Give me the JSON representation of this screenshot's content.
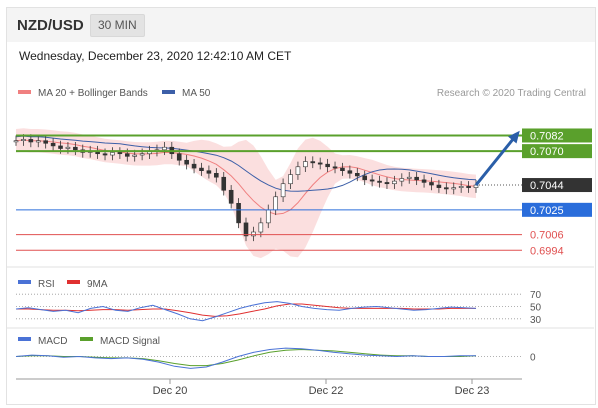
{
  "header": {
    "pair": "NZD/USD",
    "timeframe": "30 MIN"
  },
  "timestamp": "Wednesday, December 23, 2020 12:42:10 AM CET",
  "colors": {
    "bollinger": "#f08080",
    "ma50": "#3c5fa8",
    "support": "#e05050",
    "resistance": "#5aa02c",
    "pivot": "#2a6ddb",
    "price_candle": "#333333"
  },
  "chart_data": [
    {
      "type": "candlestick",
      "legend": [
        {
          "name": "MA 20 + Bollinger Bands",
          "color": "#f08080"
        },
        {
          "name": "MA 50",
          "color": "#3c5fa8"
        }
      ],
      "credit": "Research © 2020 Trading Central",
      "x_ticks": [
        "Dec 20",
        "Dec 22",
        "Dec 23"
      ],
      "ylim": [
        0.6985,
        0.71
      ],
      "close": [
        0.7078,
        0.7079,
        0.7077,
        0.7078,
        0.7076,
        0.7074,
        0.7072,
        0.7073,
        0.7071,
        0.7069,
        0.707,
        0.7068,
        0.7067,
        0.7069,
        0.7068,
        0.7066,
        0.7067,
        0.7068,
        0.707,
        0.7071,
        0.7073,
        0.7068,
        0.7063,
        0.706,
        0.7057,
        0.7055,
        0.7053,
        0.705,
        0.704,
        0.703,
        0.7015,
        0.7005,
        0.7008,
        0.7015,
        0.7025,
        0.7035,
        0.7045,
        0.7052,
        0.7058,
        0.7062,
        0.7061,
        0.706,
        0.7058,
        0.7057,
        0.7055,
        0.7053,
        0.7051,
        0.7048,
        0.7047,
        0.7046,
        0.7045,
        0.7047,
        0.7049,
        0.705,
        0.7048,
        0.7046,
        0.7044,
        0.7042,
        0.7041,
        0.7042,
        0.7043,
        0.7042,
        0.7044
      ],
      "levels": [
        {
          "value": "0.7082",
          "role": "resistance"
        },
        {
          "value": "0.7070",
          "role": "resistance"
        },
        {
          "value": "0.7044",
          "role": "last"
        },
        {
          "value": "0.7025",
          "role": "pivot"
        },
        {
          "value": "0.7006",
          "role": "support"
        },
        {
          "value": "0.6994",
          "role": "support"
        }
      ],
      "forecast": "up"
    },
    {
      "type": "line",
      "legend": [
        {
          "name": "RSI",
          "color": "#4a72d6"
        },
        {
          "name": "9MA",
          "color": "#e03030"
        }
      ],
      "ticks": [
        "70",
        "50",
        "30"
      ],
      "ylim": [
        20,
        80
      ],
      "rsi": [
        46,
        48,
        45,
        42,
        44,
        40,
        47,
        50,
        44,
        42,
        48,
        52,
        45,
        38,
        30,
        27,
        33,
        40,
        47,
        52,
        56,
        58,
        55,
        50,
        47,
        45,
        44,
        47,
        49,
        50,
        48,
        46,
        44,
        45,
        47,
        49,
        48,
        47
      ],
      "ma9": [
        46,
        46,
        45,
        44,
        44,
        43,
        44,
        45,
        45,
        44,
        45,
        46,
        46,
        43,
        40,
        36,
        34,
        35,
        38,
        42,
        46,
        51,
        54,
        54,
        52,
        50,
        48,
        47,
        47,
        47,
        47,
        47,
        46,
        46,
        46,
        47,
        47,
        47
      ]
    },
    {
      "type": "line",
      "legend": [
        {
          "name": "MACD",
          "color": "#4a72d6"
        },
        {
          "name": "MACD Signal",
          "color": "#5aa02c"
        }
      ],
      "ticks": [
        "0"
      ],
      "ylim": [
        -0.0025,
        0.0015
      ],
      "macd": [
        0.0,
        0.0002,
        0.0001,
        -0.0001,
        0.0,
        -0.0002,
        -0.0003,
        -0.0002,
        -0.0004,
        -0.0008,
        -0.0014,
        -0.0017,
        -0.0015,
        -0.0008,
        0.0,
        0.0006,
        0.001,
        0.0012,
        0.0011,
        0.0009,
        0.0006,
        0.0004,
        0.0002,
        0.0001,
        0.0,
        0.0001,
        0.0,
        0.0,
        0.0001,
        0.0001
      ],
      "signal": [
        0.0,
        0.0001,
        0.0001,
        0.0,
        0.0,
        -0.0001,
        -0.0002,
        -0.0002,
        -0.0003,
        -0.0006,
        -0.001,
        -0.0013,
        -0.0013,
        -0.001,
        -0.0005,
        0.0001,
        0.0006,
        0.0009,
        0.001,
        0.0009,
        0.0008,
        0.0006,
        0.0004,
        0.0002,
        0.0001,
        0.0001,
        0.0,
        0.0,
        0.0,
        0.0001
      ]
    }
  ]
}
